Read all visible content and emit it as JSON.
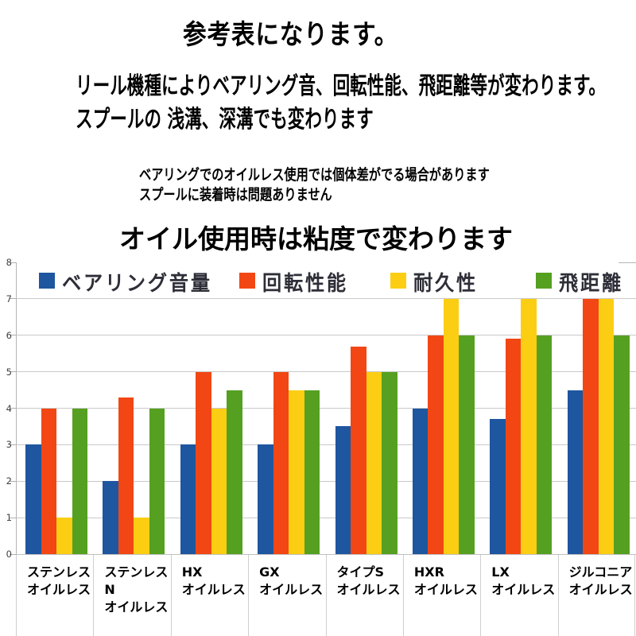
{
  "page": {
    "title": "参考表になります。",
    "description_lines": [
      "リール機種によりベアリング音、回転性能、飛距離等が変わります。",
      "スプールの 浅溝、深溝でも変わります"
    ],
    "note_lines": [
      "ベアリングでのオイルレス使用では個体差がでる場合があります",
      "スプールに装着時は問題ありません"
    ],
    "chart_heading": "オイル使用時は粘度で変わります"
  },
  "chart_data": {
    "type": "bar",
    "title": "オイル使用時は粘度で変わります",
    "categories": [
      "ステンレス\nオイルレス",
      "ステンレスN\nオイルレス",
      "HX\nオイルレス",
      "GX\nオイルレス",
      "タイプS\nオイルレス",
      "HXR\nオイルレス",
      "LX\nオイルレス",
      "ジルコニア\nオイルレス"
    ],
    "series": [
      {
        "name": "ベアリング音量",
        "color": "#1E56A0",
        "values": [
          3,
          2,
          3,
          3,
          3.5,
          4,
          3.7,
          4.5
        ]
      },
      {
        "name": "回転性能",
        "color": "#F24714",
        "values": [
          4,
          4.3,
          5,
          5,
          5.7,
          6,
          5.9,
          7
        ]
      },
      {
        "name": "耐久性",
        "color": "#FBCE13",
        "values": [
          1,
          1,
          4,
          4.5,
          5,
          7,
          7,
          7
        ]
      },
      {
        "name": "飛距離",
        "color": "#55A020",
        "values": [
          4,
          4,
          4.5,
          4.5,
          5,
          6,
          6,
          6
        ]
      }
    ],
    "ylim": [
      0,
      8
    ],
    "yticks": [
      0,
      1,
      2,
      3,
      4,
      5,
      6,
      7,
      8
    ],
    "grid": true,
    "legend_position": "top-inside",
    "xlabel": "",
    "ylabel": ""
  }
}
